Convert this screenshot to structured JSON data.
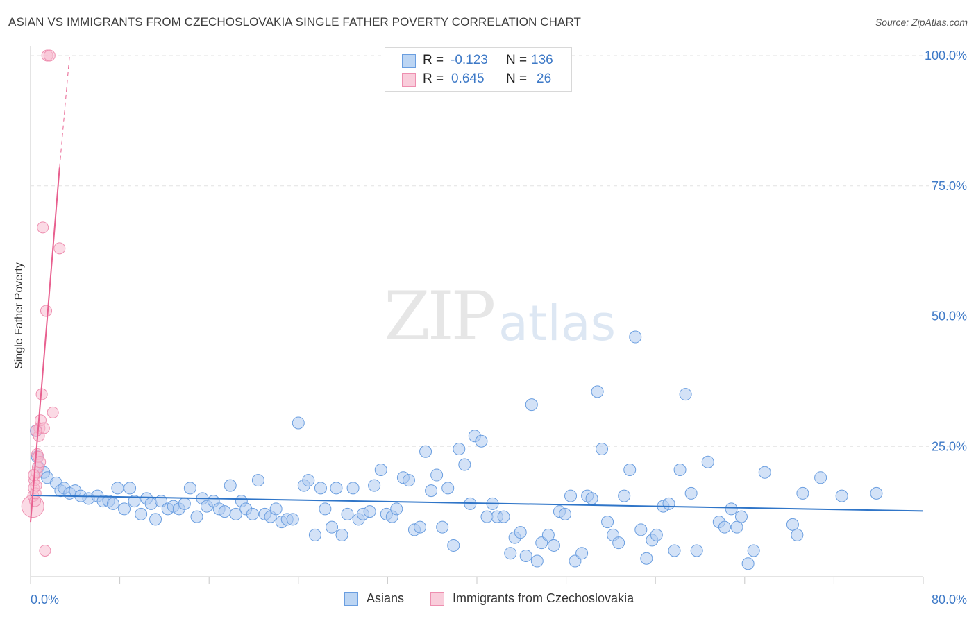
{
  "title": "ASIAN VS IMMIGRANTS FROM CZECHOSLOVAKIA SINGLE FATHER POVERTY CORRELATION CHART",
  "source": "Source: ZipAtlas.com",
  "watermark": {
    "zip": "ZIP",
    "atlas": "atlas"
  },
  "legend": {
    "r_label": "R =",
    "n_label": "N =",
    "asians": {
      "r": "-0.123",
      "n": "136"
    },
    "czech": {
      "r": "0.645",
      "n": "26"
    }
  },
  "bottom_legend": {
    "asians": "Asians",
    "czech": "Immigrants from Czechoslovakia"
  },
  "colors": {
    "blue_fill": "#aecbf0",
    "blue_stroke": "#6a9ee0",
    "blue_line": "#2f75c8",
    "pink_fill": "#f7bcd0",
    "pink_stroke": "#ee8fb0",
    "pink_line": "#e8608f",
    "tick_text": "#3d79c7",
    "grid": "#e2e2e2"
  },
  "chart_data": {
    "type": "scatter",
    "title": "ASIAN VS IMMIGRANTS FROM CZECHOSLOVAKIA SINGLE FATHER POVERTY CORRELATION CHART",
    "xlabel": "",
    "ylabel": "Single Father Poverty",
    "xlim": [
      0,
      80
    ],
    "ylim": [
      0,
      100
    ],
    "x_tick_labels": [
      "0.0%",
      "80.0%"
    ],
    "y_ticks": [
      25,
      50,
      75,
      100
    ],
    "y_tick_labels": [
      "25.0%",
      "50.0%",
      "75.0%",
      "100.0%"
    ],
    "grid": true,
    "series": [
      {
        "name": "Asians",
        "r": -0.123,
        "n": 136,
        "trend": {
          "x": [
            0,
            80
          ],
          "y": [
            15.6,
            12.6
          ]
        },
        "points": [
          [
            0.5,
            28
          ],
          [
            0.6,
            23
          ],
          [
            0.7,
            21
          ],
          [
            1.2,
            20
          ],
          [
            1.5,
            19
          ],
          [
            2.3,
            18
          ],
          [
            2.7,
            16.5
          ],
          [
            3,
            17
          ],
          [
            3.5,
            16
          ],
          [
            4,
            16.5
          ],
          [
            4.5,
            15.5
          ],
          [
            5.2,
            15
          ],
          [
            6,
            15.5
          ],
          [
            6.5,
            14.5
          ],
          [
            7,
            14.5
          ],
          [
            7.4,
            14
          ],
          [
            7.8,
            17
          ],
          [
            8.4,
            13
          ],
          [
            8.9,
            17
          ],
          [
            9.3,
            14.5
          ],
          [
            9.9,
            12
          ],
          [
            10.4,
            15
          ],
          [
            10.8,
            14
          ],
          [
            11.2,
            11
          ],
          [
            11.7,
            14.5
          ],
          [
            12.3,
            13
          ],
          [
            12.8,
            13.5
          ],
          [
            13.3,
            13
          ],
          [
            13.8,
            14
          ],
          [
            14.3,
            17
          ],
          [
            14.9,
            11.5
          ],
          [
            15.4,
            15
          ],
          [
            15.8,
            13.5
          ],
          [
            16.4,
            14.5
          ],
          [
            16.9,
            13
          ],
          [
            17.4,
            12.5
          ],
          [
            17.9,
            17.5
          ],
          [
            18.4,
            12
          ],
          [
            18.9,
            14.5
          ],
          [
            19.3,
            13
          ],
          [
            19.9,
            12
          ],
          [
            20.4,
            18.5
          ],
          [
            21.0,
            12
          ],
          [
            21.5,
            11.5
          ],
          [
            22.0,
            13
          ],
          [
            22.5,
            10.5
          ],
          [
            23.0,
            11
          ],
          [
            23.5,
            11
          ],
          [
            24.0,
            29.5
          ],
          [
            24.5,
            17.5
          ],
          [
            24.9,
            18.5
          ],
          [
            25.5,
            8
          ],
          [
            26.0,
            17
          ],
          [
            26.4,
            13
          ],
          [
            27.0,
            9.5
          ],
          [
            27.4,
            17
          ],
          [
            27.9,
            8
          ],
          [
            28.4,
            12
          ],
          [
            28.9,
            17
          ],
          [
            29.4,
            11
          ],
          [
            29.8,
            12
          ],
          [
            30.4,
            12.5
          ],
          [
            30.8,
            17.5
          ],
          [
            31.4,
            20.5
          ],
          [
            31.9,
            12
          ],
          [
            32.4,
            11.5
          ],
          [
            32.8,
            13
          ],
          [
            33.4,
            19
          ],
          [
            33.9,
            18.5
          ],
          [
            34.4,
            9
          ],
          [
            34.9,
            9.5
          ],
          [
            35.4,
            24
          ],
          [
            35.9,
            16.5
          ],
          [
            36.4,
            19.5
          ],
          [
            36.9,
            9.5
          ],
          [
            37.4,
            17
          ],
          [
            37.9,
            6
          ],
          [
            38.4,
            24.5
          ],
          [
            38.9,
            21.5
          ],
          [
            39.4,
            14
          ],
          [
            39.8,
            27
          ],
          [
            40.4,
            26
          ],
          [
            40.9,
            11.5
          ],
          [
            41.4,
            14
          ],
          [
            41.8,
            11.5
          ],
          [
            42.4,
            11.5
          ],
          [
            43.0,
            4.5
          ],
          [
            43.4,
            7.5
          ],
          [
            43.9,
            8.5
          ],
          [
            44.4,
            4
          ],
          [
            44.9,
            33
          ],
          [
            45.4,
            3
          ],
          [
            45.8,
            6.5
          ],
          [
            46.4,
            8
          ],
          [
            46.9,
            6
          ],
          [
            47.4,
            12.5
          ],
          [
            47.9,
            12
          ],
          [
            48.4,
            15.5
          ],
          [
            48.8,
            3
          ],
          [
            49.4,
            4.5
          ],
          [
            49.9,
            15.5
          ],
          [
            50.3,
            15
          ],
          [
            50.8,
            35.5
          ],
          [
            51.2,
            24.5
          ],
          [
            51.7,
            10.5
          ],
          [
            52.2,
            8
          ],
          [
            52.7,
            6.5
          ],
          [
            53.2,
            15.5
          ],
          [
            53.7,
            20.5
          ],
          [
            54.2,
            46
          ],
          [
            54.7,
            9
          ],
          [
            55.2,
            3.5
          ],
          [
            55.7,
            7
          ],
          [
            56.1,
            8
          ],
          [
            56.7,
            13.5
          ],
          [
            57.2,
            14
          ],
          [
            57.7,
            5
          ],
          [
            58.2,
            20.5
          ],
          [
            58.7,
            35
          ],
          [
            59.2,
            16
          ],
          [
            59.7,
            5
          ],
          [
            60.7,
            22
          ],
          [
            61.7,
            10.5
          ],
          [
            62.2,
            9.5
          ],
          [
            62.8,
            13
          ],
          [
            63.3,
            9.5
          ],
          [
            63.7,
            11.5
          ],
          [
            64.3,
            2.5
          ],
          [
            64.8,
            5
          ],
          [
            65.8,
            20
          ],
          [
            68.3,
            10
          ],
          [
            68.7,
            8
          ],
          [
            69.2,
            16
          ],
          [
            70.8,
            19
          ],
          [
            72.7,
            15.5
          ],
          [
            75.8,
            16
          ]
        ]
      },
      {
        "name": "Immigrants from Czechoslovakia",
        "r": 0.645,
        "n": 26,
        "trend": {
          "x": [
            0,
            2.6
          ],
          "y": [
            10.5,
            78.5
          ]
        },
        "trend_extension": {
          "x": [
            2.6,
            3.5
          ],
          "y": [
            78.5,
            100
          ]
        },
        "points": [
          [
            0.2,
            13.5
          ],
          [
            0.25,
            15.5
          ],
          [
            0.3,
            17
          ],
          [
            0.35,
            18.5
          ],
          [
            0.4,
            14.5
          ],
          [
            0.45,
            16
          ],
          [
            0.5,
            17.5
          ],
          [
            0.55,
            20
          ],
          [
            0.6,
            23.5
          ],
          [
            0.65,
            21
          ],
          [
            0.7,
            23
          ],
          [
            0.75,
            27
          ],
          [
            0.8,
            28.5
          ],
          [
            0.85,
            22
          ],
          [
            0.9,
            30
          ],
          [
            1.0,
            35
          ],
          [
            1.1,
            67
          ],
          [
            1.2,
            28.5
          ],
          [
            1.3,
            5
          ],
          [
            1.4,
            51
          ],
          [
            1.5,
            100
          ],
          [
            1.7,
            100
          ],
          [
            2.0,
            31.5
          ],
          [
            2.6,
            63
          ],
          [
            0.3,
            19.5
          ],
          [
            0.5,
            28
          ]
        ]
      }
    ]
  }
}
